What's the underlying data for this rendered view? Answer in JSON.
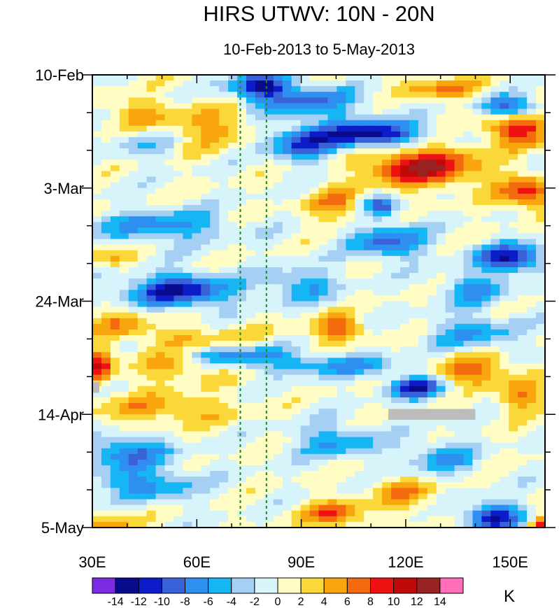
{
  "chart_data": {
    "type": "heatmap",
    "title": "HIRS UTWV: 10N - 20N",
    "subtitle": "10-Feb-2013 to 5-May-2013",
    "x": {
      "range": [
        30,
        160
      ],
      "ticks": [
        30,
        60,
        90,
        120,
        150
      ],
      "tick_labels": [
        "30E",
        "60E",
        "90E",
        "120E",
        "150E"
      ],
      "minor_step": 10
    },
    "y": {
      "range_days": [
        0,
        84
      ],
      "ticks_days": [
        0,
        21,
        42,
        63,
        84
      ],
      "tick_labels": [
        "10-Feb",
        "3-Mar",
        "24-Mar",
        "14-Apr",
        "5-May"
      ],
      "minor_step_days": 7
    },
    "reference_lines_lon": [
      72.5,
      80
    ],
    "missing_regions": [
      {
        "lon": [
          30,
          32
        ],
        "day": [
          57,
          59
        ]
      },
      {
        "lon": [
          115,
          140
        ],
        "day": [
          62,
          64
        ]
      }
    ],
    "colorbar": {
      "unit": "K",
      "levels": [
        -14,
        -12,
        -10,
        -8,
        -6,
        -4,
        -2,
        0,
        2,
        4,
        6,
        8,
        10,
        12,
        14
      ],
      "colors": [
        "#7b2be2",
        "#0a0a8c",
        "#0c1cc8",
        "#3a62d8",
        "#2e8ff0",
        "#16b6f4",
        "#a6cff4",
        "#d8f4fb",
        "#fffcc4",
        "#fad83a",
        "#f8a50e",
        "#f46a0e",
        "#ee1212",
        "#c00a0a",
        "#992222",
        "#ff6fb9"
      ]
    },
    "features": [
      {
        "lon": 78,
        "day": 2,
        "dlon": 8,
        "dday": 2.5,
        "value": -12
      },
      {
        "lon": 92,
        "day": 5,
        "dlon": 14,
        "dday": 3,
        "value": -8
      },
      {
        "lon": 130,
        "day": 2.5,
        "dlon": 12,
        "dday": 2,
        "value": 6
      },
      {
        "lon": 150,
        "day": 6,
        "dlon": 8,
        "dday": 2,
        "value": -10
      },
      {
        "lon": 110,
        "day": 11,
        "dlon": 14,
        "dday": 2.5,
        "value": -14
      },
      {
        "lon": 90,
        "day": 13,
        "dlon": 10,
        "dday": 3,
        "value": -9
      },
      {
        "lon": 152,
        "day": 10,
        "dlon": 9,
        "dday": 3,
        "value": 10
      },
      {
        "lon": 125,
        "day": 17,
        "dlon": 16,
        "dday": 3.5,
        "value": 12
      },
      {
        "lon": 63,
        "day": 9.5,
        "dlon": 12,
        "dday": 4,
        "value": 5
      },
      {
        "lon": 42,
        "day": 7,
        "dlon": 10,
        "dday": 3,
        "value": 4
      },
      {
        "lon": 45,
        "day": 13,
        "dlon": 8,
        "dday": 2.5,
        "value": -4
      },
      {
        "lon": 155,
        "day": 22,
        "dlon": 8,
        "dday": 3,
        "value": 9
      },
      {
        "lon": 100,
        "day": 24,
        "dlon": 8,
        "dday": 3,
        "value": 6
      },
      {
        "lon": 113,
        "day": 24.5,
        "dlon": 5,
        "dday": 2,
        "value": -9
      },
      {
        "lon": 50,
        "day": 28,
        "dlon": 18,
        "dday": 3,
        "value": -7
      },
      {
        "lon": 115,
        "day": 31,
        "dlon": 10,
        "dday": 3,
        "value": -9
      },
      {
        "lon": 150,
        "day": 34,
        "dlon": 10,
        "dday": 2.5,
        "value": -12
      },
      {
        "lon": 36,
        "day": 34,
        "dlon": 6,
        "dday": 2,
        "value": 5
      },
      {
        "lon": 55,
        "day": 40,
        "dlon": 15,
        "dday": 3,
        "value": -12
      },
      {
        "lon": 90,
        "day": 39,
        "dlon": 10,
        "dday": 3,
        "value": -6
      },
      {
        "lon": 140,
        "day": 40,
        "dlon": 10,
        "dday": 3,
        "value": -6
      },
      {
        "lon": 38,
        "day": 46,
        "dlon": 8,
        "dday": 2.5,
        "value": 5
      },
      {
        "lon": 100,
        "day": 47,
        "dlon": 8,
        "dday": 2.5,
        "value": 7
      },
      {
        "lon": 60,
        "day": 49,
        "dlon": 20,
        "dday": 2.5,
        "value": 4
      },
      {
        "lon": 140,
        "day": 48,
        "dlon": 12,
        "dday": 3,
        "value": -6
      },
      {
        "lon": 70,
        "day": 52,
        "dlon": 16,
        "dday": 2,
        "value": -8
      },
      {
        "lon": 32,
        "day": 54,
        "dlon": 4,
        "dday": 3,
        "value": 10
      },
      {
        "lon": 55,
        "day": 54,
        "dlon": 14,
        "dday": 3,
        "value": 5
      },
      {
        "lon": 100,
        "day": 54,
        "dlon": 20,
        "dday": 2,
        "value": -6
      },
      {
        "lon": 123,
        "day": 58,
        "dlon": 8,
        "dday": 2,
        "value": -12
      },
      {
        "lon": 140,
        "day": 55,
        "dlon": 12,
        "dday": 3,
        "value": 7
      },
      {
        "lon": 153,
        "day": 60,
        "dlon": 6,
        "dday": 3,
        "value": 6
      },
      {
        "lon": 50,
        "day": 62,
        "dlon": 20,
        "dday": 3,
        "value": 5
      },
      {
        "lon": 40,
        "day": 70,
        "dlon": 12,
        "dday": 3,
        "value": -8
      },
      {
        "lon": 100,
        "day": 68,
        "dlon": 12,
        "dday": 3,
        "value": -6
      },
      {
        "lon": 130,
        "day": 71,
        "dlon": 10,
        "dday": 3,
        "value": -6
      },
      {
        "lon": 45,
        "day": 76,
        "dlon": 14,
        "dday": 3,
        "value": -7
      },
      {
        "lon": 100,
        "day": 81.5,
        "dlon": 8,
        "dday": 2.5,
        "value": 8
      },
      {
        "lon": 120,
        "day": 78,
        "dlon": 10,
        "dday": 3,
        "value": 5
      },
      {
        "lon": 145,
        "day": 82,
        "dlon": 8,
        "dday": 2.5,
        "value": -12
      },
      {
        "lon": 160,
        "day": 84,
        "dlon": 4,
        "dday": 2,
        "value": 10
      },
      {
        "lon": 35,
        "day": 83,
        "dlon": 8,
        "dday": 2,
        "value": 5
      }
    ]
  }
}
